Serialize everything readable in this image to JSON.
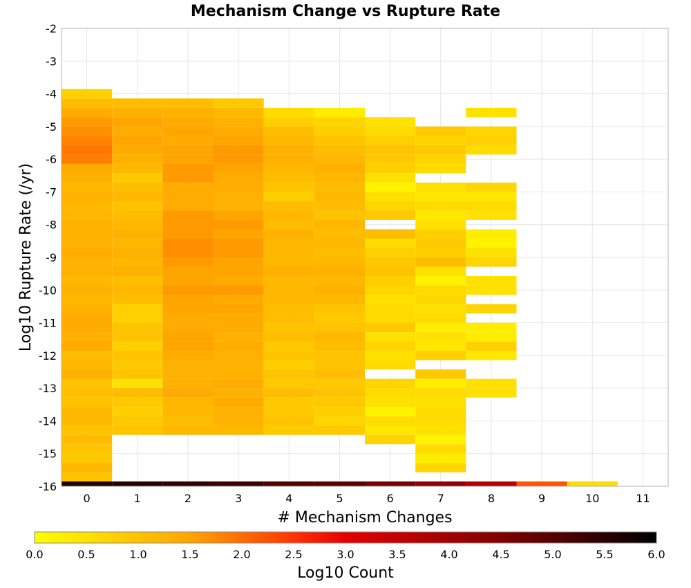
{
  "chart_data": {
    "type": "heatmap",
    "title": "Mechanism Change vs Rupture Rate",
    "xlabel": "# Mechanism Changes",
    "ylabel": "Log10 Rupture Rate (/yr)",
    "xlim": [
      -0.5,
      11.5
    ],
    "ylim": [
      -16,
      -2
    ],
    "x_ticks": [
      0,
      1,
      2,
      3,
      4,
      5,
      6,
      7,
      8,
      9,
      10,
      11
    ],
    "y_ticks": [
      -2,
      -3,
      -4,
      -5,
      -6,
      -7,
      -8,
      -9,
      -10,
      -11,
      -12,
      -13,
      -14,
      -15,
      -16
    ],
    "cell_height": 0.2857,
    "grid": true,
    "colorbar": {
      "label": "Log10 Count",
      "range": [
        0,
        6
      ],
      "ticks": [
        "0.0",
        "0.5",
        "1.0",
        "1.5",
        "2.0",
        "2.5",
        "3.0",
        "3.5",
        "4.0",
        "4.5",
        "5.0",
        "5.5",
        "6.0"
      ],
      "stops": [
        {
          "v": 0.0,
          "color": "#ffff00"
        },
        {
          "v": 1.5,
          "color": "#ffa500"
        },
        {
          "v": 2.5,
          "color": "#ff3300"
        },
        {
          "v": 3.0,
          "color": "#e60000"
        },
        {
          "v": 4.5,
          "color": "#800000"
        },
        {
          "v": 6.0,
          "color": "#000000"
        }
      ]
    },
    "bottom_row": {
      "y": -16,
      "values": [
        5.6,
        5.5,
        5.4,
        5.3,
        5.0,
        4.9,
        4.6,
        4.2,
        3.7,
        2.2,
        0.6
      ]
    },
    "columns": [
      {
        "x": 0,
        "top": -3.857,
        "values": [
          0.8,
          1.1,
          1.4,
          1.6,
          1.7,
          1.8,
          1.9,
          1.85,
          1.4,
          1.3,
          1.2,
          1.3,
          1.2,
          1.2,
          1.3,
          1.3,
          1.3,
          1.4,
          1.3,
          1.3,
          1.2,
          1.3,
          1.2,
          1.3,
          1.4,
          1.4,
          1.3,
          1.4,
          1.1,
          1.2,
          1.3,
          1.0,
          1.1,
          1.0,
          1.2,
          1.2,
          1.0,
          1.1,
          1.0,
          0.9,
          1.2,
          1.0
        ]
      },
      {
        "x": 1,
        "top": -4.143,
        "values": [
          1.1,
          1.3,
          1.5,
          1.4,
          1.5,
          1.4,
          1.3,
          1.2,
          0.9,
          1.1,
          1.2,
          1.0,
          1.1,
          1.2,
          1.3,
          1.2,
          1.3,
          1.2,
          1.3,
          1.1,
          1.2,
          1.1,
          0.8,
          0.8,
          1.0,
          1.0,
          0.8,
          1.0,
          0.9,
          1.0,
          0.5,
          1.1,
          0.9,
          0.8,
          0.9,
          1.0
        ]
      },
      {
        "x": 2,
        "top": -4.143,
        "values": [
          1.1,
          1.3,
          1.4,
          1.5,
          1.4,
          1.5,
          1.5,
          1.6,
          1.6,
          1.4,
          1.4,
          1.4,
          1.6,
          1.6,
          1.6,
          1.7,
          1.7,
          1.6,
          1.5,
          1.5,
          1.6,
          1.5,
          1.5,
          1.4,
          1.4,
          1.5,
          1.5,
          1.4,
          1.3,
          1.3,
          1.3,
          1.4,
          1.2,
          1.2,
          1.1,
          1.2
        ]
      },
      {
        "x": 3,
        "top": -4.143,
        "values": [
          0.9,
          1.2,
          1.3,
          1.4,
          1.5,
          1.6,
          1.6,
          1.5,
          1.4,
          1.4,
          1.3,
          1.3,
          1.5,
          1.6,
          1.5,
          1.6,
          1.6,
          1.5,
          1.5,
          1.4,
          1.6,
          1.4,
          1.5,
          1.4,
          1.4,
          1.3,
          1.4,
          1.3,
          1.3,
          1.3,
          1.4,
          1.3,
          1.4,
          1.3,
          1.3,
          1.2
        ]
      },
      {
        "x": 4,
        "top": -4.429,
        "values": [
          0.6,
          0.8,
          1.1,
          1.2,
          1.3,
          1.3,
          1.2,
          1.1,
          1.0,
          0.8,
          1.1,
          1.2,
          1.1,
          1.3,
          1.2,
          1.2,
          1.2,
          1.3,
          1.2,
          1.2,
          1.2,
          1.1,
          1.1,
          1.0,
          1.1,
          0.9,
          1.0,
          0.8,
          1.0,
          0.9,
          1.1,
          0.9,
          0.9,
          1.0,
          0.9
        ]
      },
      {
        "x": 5,
        "top": -4.429,
        "values": [
          0.3,
          0.7,
          0.8,
          1.0,
          1.1,
          1.2,
          1.3,
          1.2,
          1.1,
          1.2,
          1.1,
          1.0,
          1.2,
          1.1,
          1.2,
          1.1,
          1.2,
          1.3,
          1.2,
          1.3,
          1.2,
          1.0,
          0.9,
          1.0,
          1.2,
          1.1,
          1.0,
          1.0,
          1.1,
          0.9,
          1.0,
          0.9,
          0.8,
          0.7,
          0.9
        ]
      },
      {
        "x": 6,
        "top": -4.714,
        "values": [
          0.5,
          0.6,
          0.8,
          1.0,
          0.9,
          0.8,
          0.5,
          0.2,
          0.5,
          0.7,
          0.9,
          null,
          1.1,
          0.6,
          0.8,
          0.9,
          1.0,
          0.8,
          0.7,
          0.5,
          0.6,
          0.6,
          0.9,
          0.5,
          0.7,
          0.5,
          0.6,
          null,
          0.7,
          0.6,
          0.5,
          0.2,
          0.6,
          0.4,
          0.7
        ]
      },
      {
        "x": 7,
        "top": -5.0,
        "values": [
          0.9,
          0.7,
          0.9,
          0.7,
          0.6,
          null,
          0.5,
          0.4,
          0.6,
          0.4,
          0.5,
          0.8,
          0.9,
          0.8,
          1.1,
          0.5,
          0.2,
          0.6,
          0.7,
          0.5,
          0.6,
          0.3,
          0.5,
          0.4,
          0.8,
          null,
          0.9,
          0.3,
          0.6,
          0.5,
          0.6,
          0.6,
          0.5,
          0.2,
          0.6,
          0.3,
          0.7
        ]
      },
      {
        "x": 8,
        "top": -4.429,
        "values": [
          0.5,
          null,
          0.7,
          0.8,
          0.6,
          null,
          null,
          null,
          0.7,
          0.4,
          0.6,
          0.5,
          null,
          0.3,
          0.2,
          0.5,
          0.7,
          null,
          0.5,
          0.5,
          null,
          0.7,
          null,
          0.3,
          0.3,
          0.8,
          0.4,
          null,
          null,
          0.5,
          0.5
        ]
      },
      {
        "x": 9,
        "top": -16.0,
        "values": []
      },
      {
        "x": 10,
        "top": -16.0,
        "values": []
      }
    ]
  }
}
